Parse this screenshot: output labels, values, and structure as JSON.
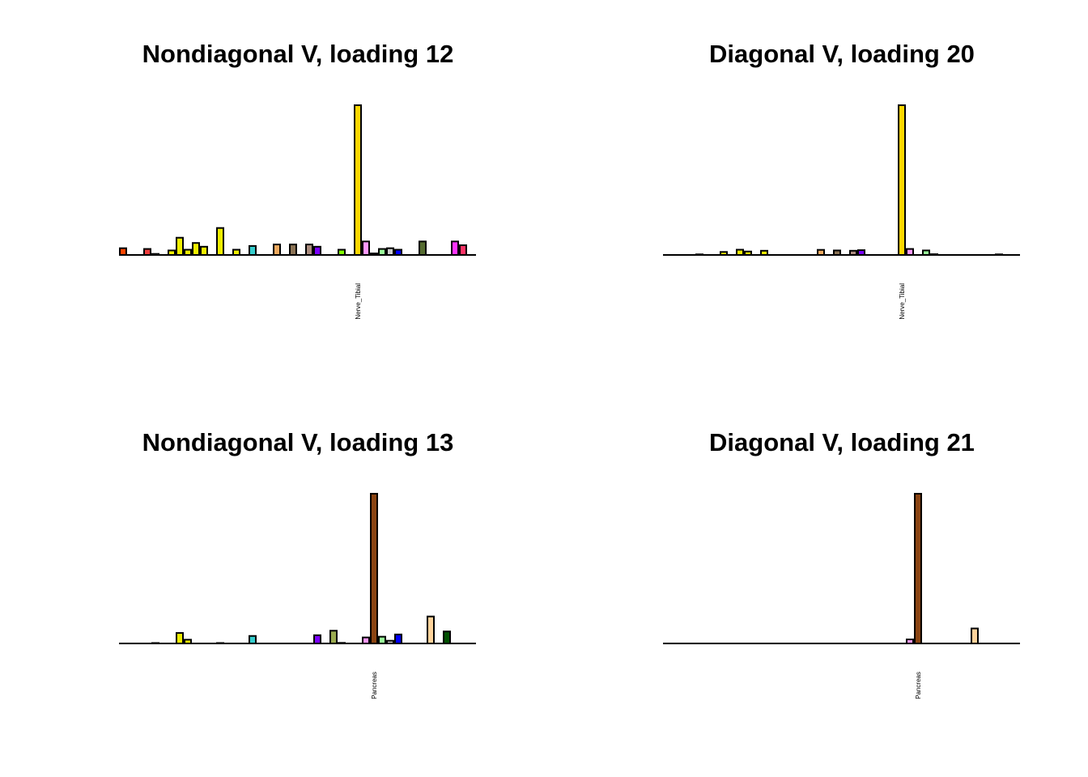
{
  "chart_data": [
    {
      "type": "bar",
      "title": "Nondiagonal V, loading 12",
      "n_categories": 44,
      "labeled_category": {
        "index": 29,
        "label": "Nerve_Tibial"
      },
      "values": {
        "0": 0.045,
        "3": 0.04,
        "4": 0.007,
        "6": 0.03,
        "7": 0.115,
        "8": 0.035,
        "9": 0.08,
        "10": 0.055,
        "12": 0.18,
        "14": 0.035,
        "16": 0.06,
        "19": 0.07,
        "21": 0.07,
        "23": 0.07,
        "24": 0.055,
        "27": 0.035,
        "29": 1.0,
        "30": 0.09,
        "31": 0.01,
        "32": 0.04,
        "33": 0.045,
        "34": 0.035,
        "37": 0.09,
        "41": 0.09,
        "42": 0.065
      },
      "ylim": [
        0,
        1
      ]
    },
    {
      "type": "bar",
      "title": "Diagonal V, loading 20",
      "n_categories": 44,
      "labeled_category": {
        "index": 29,
        "label": "Nerve_Tibial"
      },
      "values": {
        "4": 0.004,
        "7": 0.02,
        "9": 0.035,
        "10": 0.023,
        "12": 0.028,
        "19": 0.034,
        "21": 0.03,
        "23": 0.028,
        "24": 0.032,
        "29": 1.0,
        "30": 0.04,
        "32": 0.03,
        "33": 0.005,
        "41": 0.004
      },
      "ylim": [
        0,
        1
      ]
    },
    {
      "type": "bar",
      "title": "Nondiagonal V, loading 13",
      "n_categories": 44,
      "labeled_category": {
        "index": 31,
        "label": "Pancreas"
      },
      "values": {
        "4": 0.003,
        "7": 0.07,
        "8": 0.025,
        "12": 0.003,
        "16": 0.05,
        "24": 0.055,
        "26": 0.085,
        "27": 0.004,
        "30": 0.04,
        "31": 1.0,
        "32": 0.045,
        "33": 0.018,
        "34": 0.06,
        "38": 0.18,
        "40": 0.08
      },
      "ylim": [
        0,
        1
      ]
    },
    {
      "type": "bar",
      "title": "Diagonal V, loading 21",
      "n_categories": 44,
      "labeled_category": {
        "index": 31,
        "label": "Pancreas"
      },
      "values": {
        "30": 0.027,
        "31": 1.0,
        "38": 0.1
      },
      "ylim": [
        0,
        1
      ]
    }
  ],
  "tissue_colors": {
    "0": "#FF4500",
    "3": "#EE3B3B",
    "4": "#3A2A1A",
    "6": "#EEEE00",
    "7": "#EEEE00",
    "8": "#EEEE00",
    "9": "#EEEE00",
    "10": "#EEEE00",
    "12": "#EEEE00",
    "14": "#EEEE00",
    "16": "#33CCCC",
    "19": "#EEA95E",
    "21": "#8B7355",
    "23": "#AB8C7E",
    "24": "#7A00FF",
    "26": "#9AAA4F",
    "27": "#7FFF00",
    "29": "#FFD700",
    "30": "#FF99FF",
    "31": "#8B4513",
    "32": "#99FF99",
    "33": "#CDCDCD",
    "34": "#0000FF",
    "37": "#556B2F",
    "38": "#FFD39B",
    "40": "#005000",
    "41": "#FF33FF",
    "42": "#FF3366"
  }
}
